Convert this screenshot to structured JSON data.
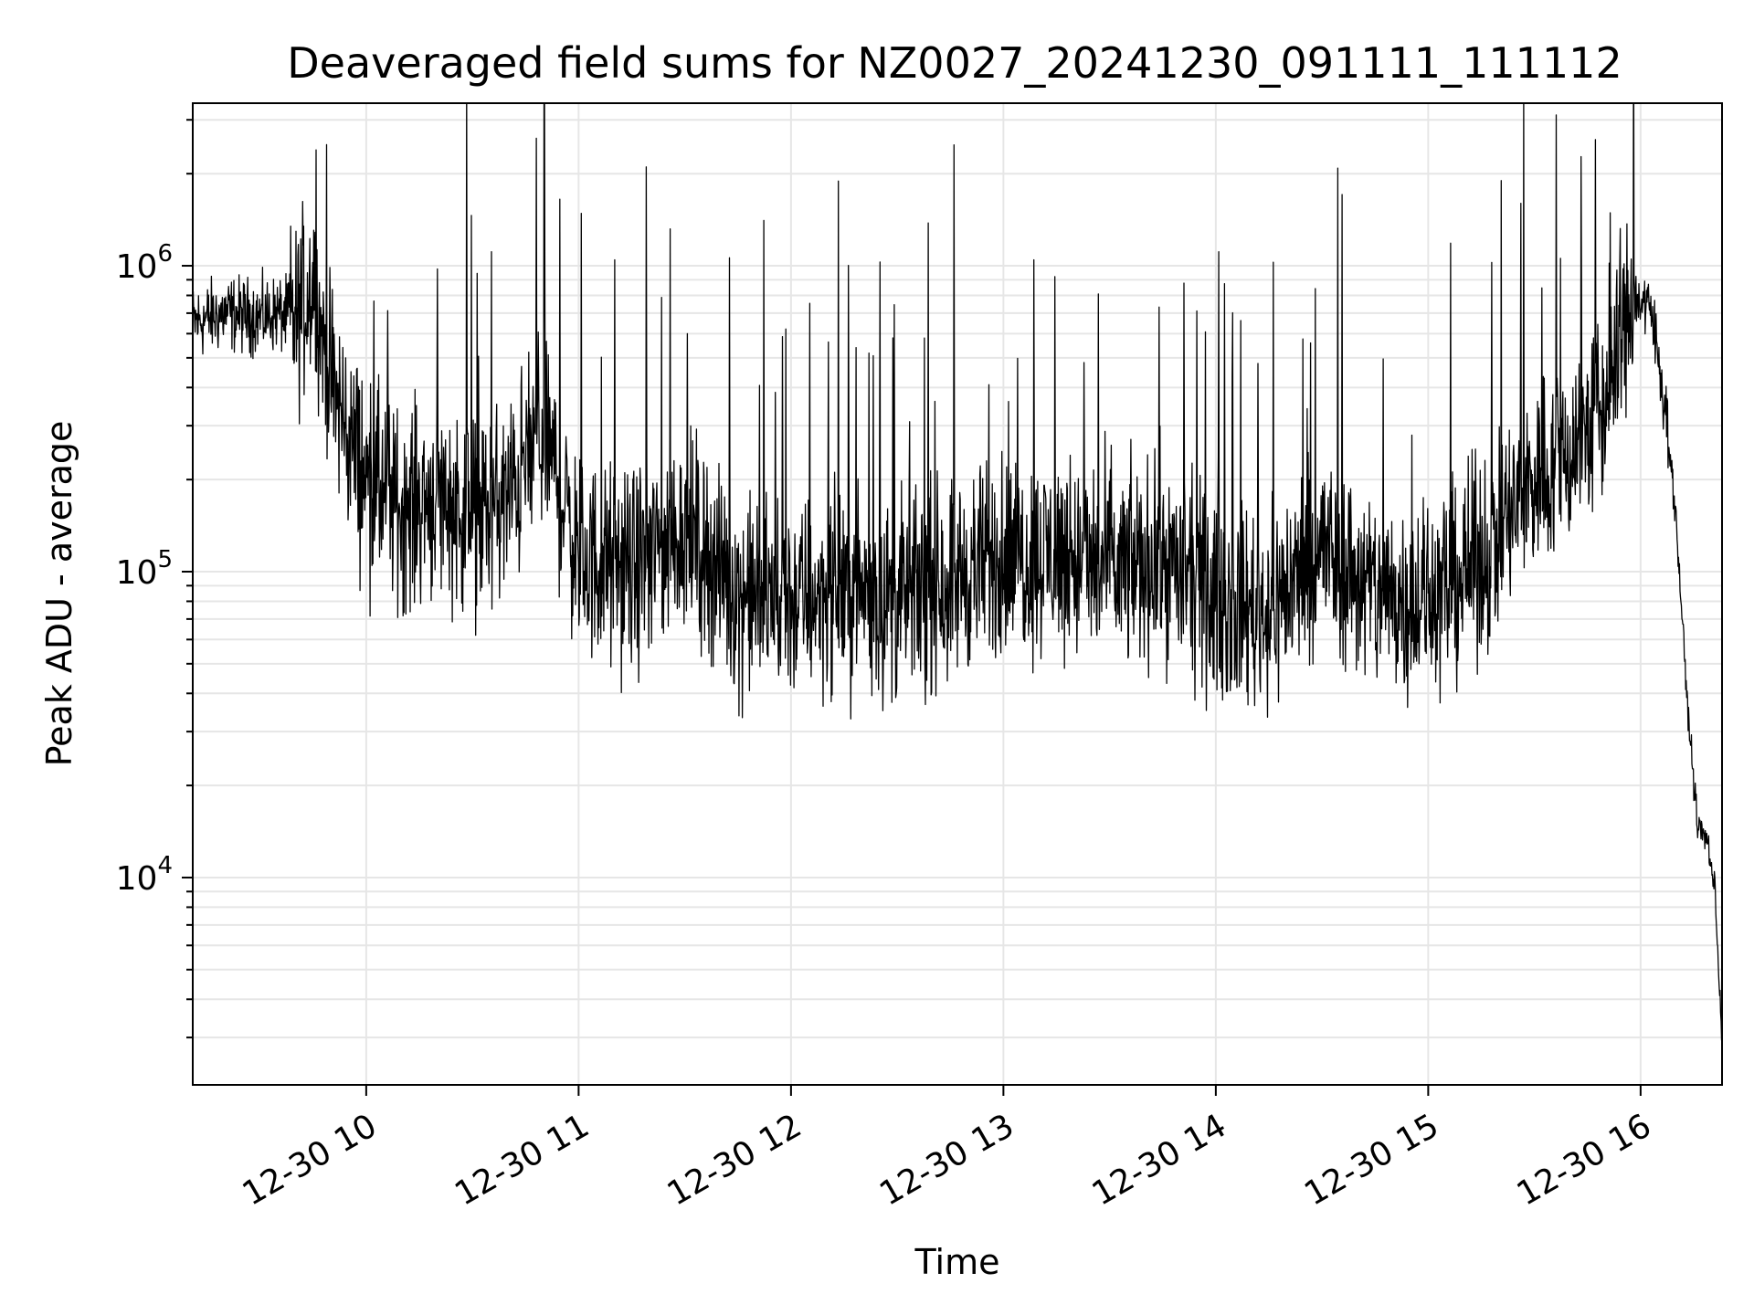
{
  "chart_data": {
    "type": "line",
    "title": "Deaveraged field sums for NZ0027_20241230_091111_111112",
    "xlabel": "Time",
    "ylabel": "Peak ADU - average",
    "y_scale": "log",
    "grid": true,
    "line_color": "#000000",
    "grid_color": "#e6e6e6",
    "xlim": [
      "12-30 09:11",
      "12-30 16:23"
    ],
    "ylim": [
      2100,
      3400000
    ],
    "x_ticks": [
      {
        "label": "12-30 10",
        "value": "12-30 10:00"
      },
      {
        "label": "12-30 11",
        "value": "12-30 11:00"
      },
      {
        "label": "12-30 12",
        "value": "12-30 12:00"
      },
      {
        "label": "12-30 13",
        "value": "12-30 13:00"
      },
      {
        "label": "12-30 14",
        "value": "12-30 14:00"
      },
      {
        "label": "12-30 15",
        "value": "12-30 15:00"
      },
      {
        "label": "12-30 16",
        "value": "12-30 16:00"
      }
    ],
    "y_ticks": [
      {
        "base": "10",
        "exp": "4",
        "value": 10000
      },
      {
        "base": "10",
        "exp": "5",
        "value": 100000
      },
      {
        "base": "10",
        "exp": "6",
        "value": 1000000
      }
    ],
    "series": [
      {
        "x": [
          "12-30 09:11",
          "12-30 09:20",
          "12-30 09:30",
          "12-30 09:35",
          "12-30 09:40",
          "12-30 09:45",
          "12-30 09:50",
          "12-30 10:00",
          "12-30 10:10",
          "12-30 10:20",
          "12-30 10:30",
          "12-30 10:40",
          "12-30 10:50",
          "12-30 11:00",
          "12-30 11:15",
          "12-30 11:30",
          "12-30 11:45",
          "12-30 12:00",
          "12-30 12:15",
          "12-30 12:30",
          "12-30 12:45",
          "12-30 13:00",
          "12-30 13:15",
          "12-30 13:30",
          "12-30 13:45",
          "12-30 14:00",
          "12-30 14:15",
          "12-30 14:30",
          "12-30 14:45",
          "12-30 15:00",
          "12-30 15:15",
          "12-30 15:30",
          "12-30 15:40",
          "12-30 15:50",
          "12-30 15:58",
          "12-30 16:03",
          "12-30 16:07",
          "12-30 16:10",
          "12-30 16:13",
          "12-30 16:16",
          "12-30 16:19",
          "12-30 16:21",
          "12-30 16:23"
        ],
        "y": [
          650000,
          700000,
          680000,
          700000,
          650000,
          900000,
          400000,
          200000,
          160000,
          180000,
          150000,
          170000,
          300000,
          110000,
          100000,
          140000,
          85000,
          80000,
          90000,
          80000,
          95000,
          110000,
          115000,
          100000,
          110000,
          80000,
          75000,
          120000,
          85000,
          80000,
          110000,
          200000,
          250000,
          350000,
          800000,
          700000,
          350000,
          150000,
          40000,
          15000,
          13000,
          9000,
          3000
        ]
      }
    ]
  }
}
